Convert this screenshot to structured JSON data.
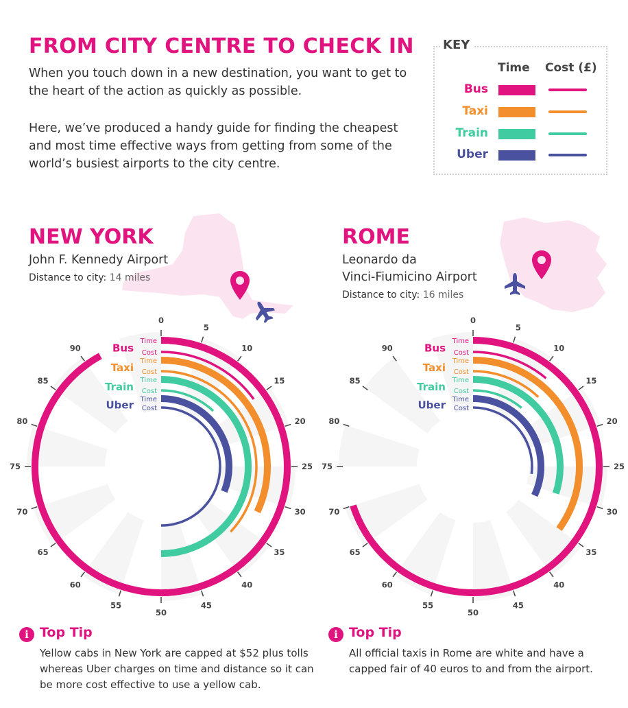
{
  "header": {
    "title": "FROM CITY CENTRE TO CHECK IN",
    "intro_1": "When you touch down in a new destination, you want to get to the heart of the action as quickly as possible.",
    "intro_2": "Here, we’ve produced a handy guide for finding the cheapest and most time effective ways from getting from some of the world’s busiest airports to the city centre."
  },
  "key": {
    "title": "KEY",
    "time_header": "Time",
    "cost_header": "Cost (£)",
    "items": [
      {
        "label": "Bus",
        "color": "#e0137f"
      },
      {
        "label": "Taxi",
        "color": "#f28e2b"
      },
      {
        "label": "Train",
        "color": "#40cca0"
      },
      {
        "label": "Uber",
        "color": "#4a52a0"
      }
    ]
  },
  "icons": {
    "pin": "map-pin-icon",
    "plane": "airplane-icon",
    "info": "info-icon"
  },
  "cities": [
    {
      "name": "NEW YORK",
      "airport": "John F. Kennedy Airport",
      "distance_label": "Distance to city:",
      "distance_value": "14 miles",
      "tip_title": "Top Tip",
      "tip_icon": "i",
      "tip_text": "Yellow cabs in New York are capped at $52 plus tolls whereas Uber charges on time and distance so it can be more cost effective to use a yellow cab."
    },
    {
      "name": "ROME",
      "airport_line1": "Leonardo da",
      "airport_line2": "Vinci-Fiumicino Airport",
      "distance_label": "Distance to city:",
      "distance_value": "16 miles",
      "tip_title": "Top Tip",
      "tip_icon": "i",
      "tip_text": "All official taxis in Rome are white and have a capped fair of 40 euros to and from the airport."
    }
  ],
  "chart_data": [
    {
      "type": "radial-bar",
      "city": "NEW YORK",
      "scale_max": 100,
      "ticks": [
        0,
        5,
        10,
        15,
        20,
        25,
        30,
        35,
        40,
        45,
        50,
        55,
        60,
        65,
        70,
        75,
        80,
        85,
        90
      ],
      "series_labels": {
        "time": "Time",
        "cost": "Cost"
      },
      "series": [
        {
          "name": "Bus",
          "time": 92,
          "cost": 15
        },
        {
          "name": "Taxi",
          "time": 32,
          "cost": 37
        },
        {
          "name": "Train",
          "time": 50,
          "cost": 12
        },
        {
          "name": "Uber",
          "time": 31,
          "cost": 50
        }
      ]
    },
    {
      "type": "radial-bar",
      "city": "ROME",
      "scale_max": 100,
      "ticks": [
        0,
        5,
        10,
        15,
        20,
        25,
        30,
        35,
        40,
        45,
        50,
        55,
        60,
        65,
        70,
        75,
        80,
        85,
        90
      ],
      "series_labels": {
        "time": "Time",
        "cost": "Cost"
      },
      "series": [
        {
          "name": "Bus",
          "time": 70,
          "cost": 11
        },
        {
          "name": "Taxi",
          "time": 35,
          "cost": 12
        },
        {
          "name": "Train",
          "time": 30,
          "cost": 11
        },
        {
          "name": "Uber",
          "time": 32,
          "cost": 27
        }
      ]
    }
  ]
}
